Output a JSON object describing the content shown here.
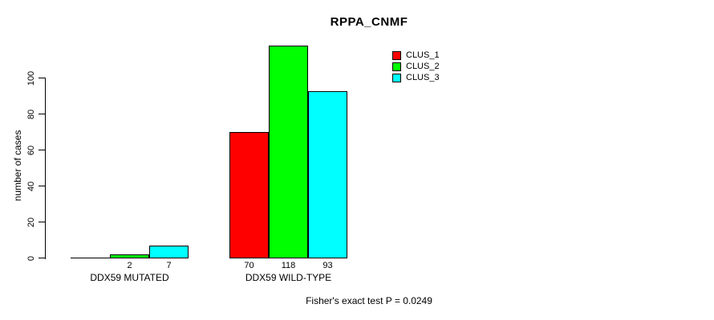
{
  "chart_data": {
    "type": "bar",
    "title": "RPPA_CNMF",
    "ylabel": "number of cases",
    "xlabel": "",
    "categories": [
      "DDX59 MUTATED",
      "DDX59 WILD-TYPE"
    ],
    "series": [
      {
        "name": "CLUS_1",
        "color": "#ff0000",
        "values": [
          0,
          70
        ]
      },
      {
        "name": "CLUS_2",
        "color": "#00ff00",
        "values": [
          2,
          118
        ]
      },
      {
        "name": "CLUS_3",
        "color": "#00ffff",
        "values": [
          7,
          93
        ]
      }
    ],
    "bar_value_labels": [
      [
        "",
        "2",
        "7"
      ],
      [
        "70",
        "118",
        "93"
      ]
    ],
    "yticks": [
      0,
      20,
      40,
      60,
      80,
      100
    ],
    "ylim": [
      0,
      120
    ],
    "grid": false,
    "legend_position": "top-right",
    "annotation": "Fisher's exact test P = 0.0249"
  }
}
